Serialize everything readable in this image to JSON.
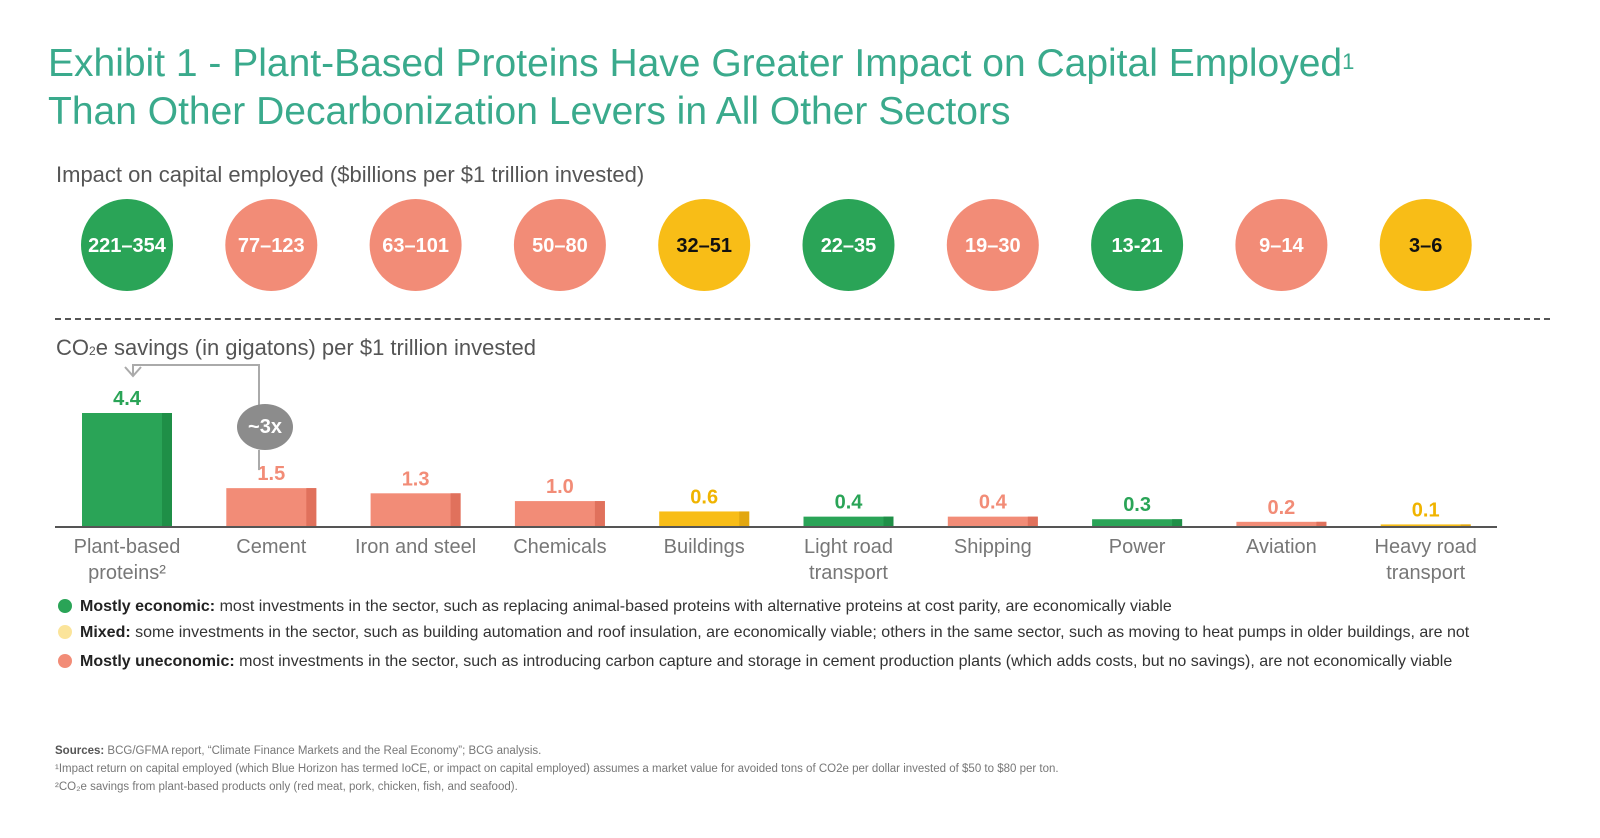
{
  "title": {
    "line1": "Exhibit 1 - Plant-Based Proteins Have Greater Impact on Capital  Employed",
    "line1_sup": "1",
    "line2": "Than Other Decarbonization Levers in All Other Sectors"
  },
  "impact_label": "Impact on capital employed ($billions per $1 trillion invested)",
  "co2_label": {
    "prefix": "CO",
    "sub": "2",
    "rest": "e savings (in gigatons) per $1 trillion invested"
  },
  "annotation": "~3x",
  "colors": {
    "economic": "#2aa457",
    "mixed": "#f8bd17",
    "uneconomic": "#f28c77",
    "title": "#3aaa8c"
  },
  "chart_data": {
    "type": "bar",
    "categories": [
      "Plant-based proteins²",
      "Cement",
      "Iron and steel",
      "Chemicals",
      "Buildings",
      "Light road transport",
      "Shipping",
      "Power",
      "Aviation",
      "Heavy road transport"
    ],
    "category_lines": [
      [
        "Plant-based",
        "proteins²"
      ],
      [
        "Cement"
      ],
      [
        "Iron and steel"
      ],
      [
        "Chemicals"
      ],
      [
        "Buildings"
      ],
      [
        "Light road",
        "transport"
      ],
      [
        "Shipping"
      ],
      [
        "Power"
      ],
      [
        "Aviation"
      ],
      [
        "Heavy road",
        "transport"
      ]
    ],
    "values": [
      4.4,
      1.5,
      1.3,
      1.0,
      0.6,
      0.4,
      0.4,
      0.3,
      0.2,
      0.1
    ],
    "value_labels": [
      "4.4",
      "1.5",
      "1.3",
      "1.0",
      "0.6",
      "0.4",
      "0.4",
      "0.3",
      "0.2",
      "0.1"
    ],
    "impact_ranges": [
      "221–354",
      "77–123",
      "63–101",
      "50–80",
      "32–51",
      "22–35",
      "19–30",
      "13-21",
      "9–14",
      "3–6"
    ],
    "status": [
      "economic",
      "uneconomic",
      "uneconomic",
      "uneconomic",
      "mixed",
      "economic",
      "uneconomic",
      "economic",
      "uneconomic",
      "mixed"
    ],
    "ylim": [
      0,
      4.4
    ]
  },
  "legend": [
    {
      "key": "economic",
      "label": "Mostly economic:",
      "text": " most investments in the sector, such as replacing animal-based proteins with alternative proteins at cost parity, are economically viable"
    },
    {
      "key": "mixed",
      "label": "Mixed:",
      "text": " some investments in the sector, such as building automation and roof insulation, are economically viable; others in the same sector, such as moving to heat pumps in older buildings, are not"
    },
    {
      "key": "uneconomic",
      "label": "Mostly uneconomic:",
      "text": " most investments in the sector, such as introducing carbon capture and storage in cement production plants (which adds costs, but no savings), are not economically viable"
    }
  ],
  "sources": {
    "label": "Sources:",
    "text": " BCG/GFMA report, “Climate Finance Markets and the Real Economy”; BCG analysis.",
    "note1": "¹Impact return on capital employed (which Blue Horizon has termed IoCE, or impact on capital employed) assumes a market value for avoided tons of CO2e per dollar invested of $50 to $80 per ton.",
    "note2": "²CO₂e savings from plant-based products only (red meat, pork, chicken, fish, and seafood)."
  }
}
